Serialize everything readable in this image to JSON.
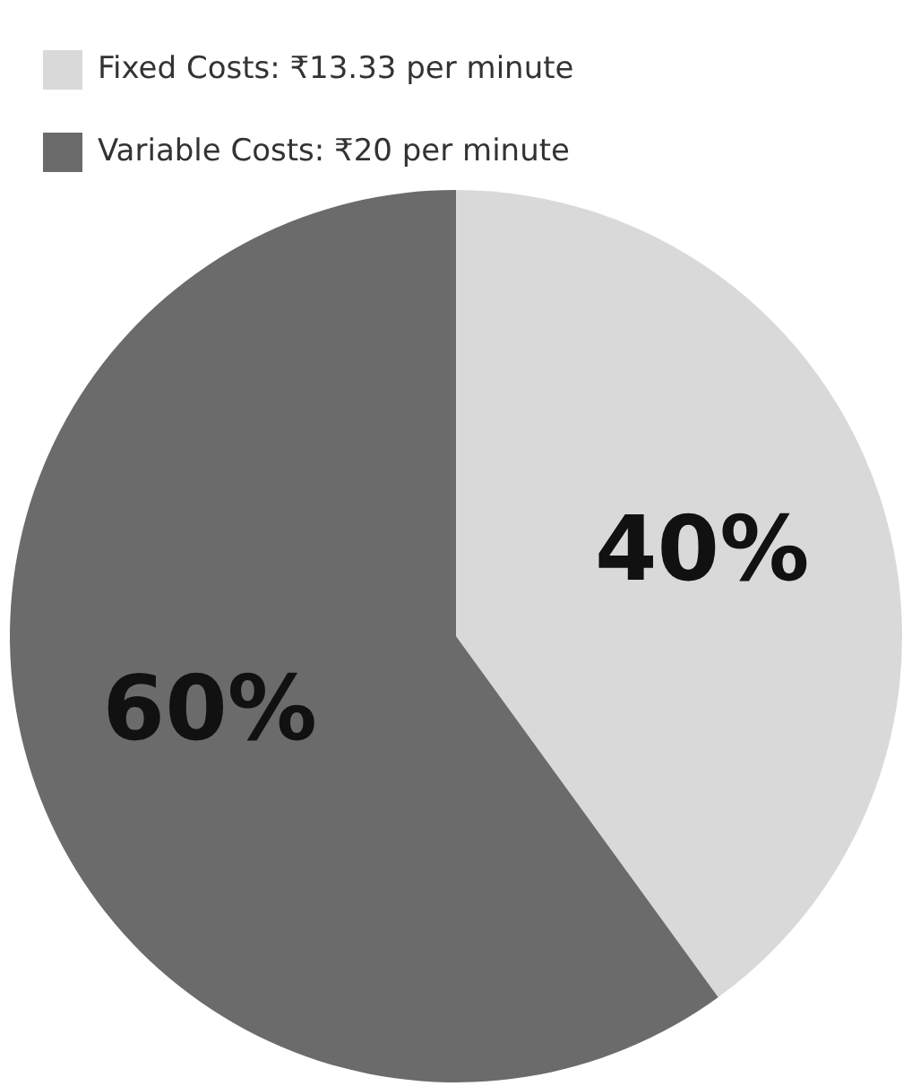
{
  "chart_data": {
    "type": "pie",
    "categories": [
      "Fixed Costs: ₹13.33 per minute",
      "Variable Costs: ₹20 per minute"
    ],
    "values": [
      40,
      60
    ],
    "colors": [
      "#d9d9d9",
      "#6b6b6b"
    ],
    "value_labels": [
      "40%",
      "60%"
    ],
    "legend": "top left"
  }
}
